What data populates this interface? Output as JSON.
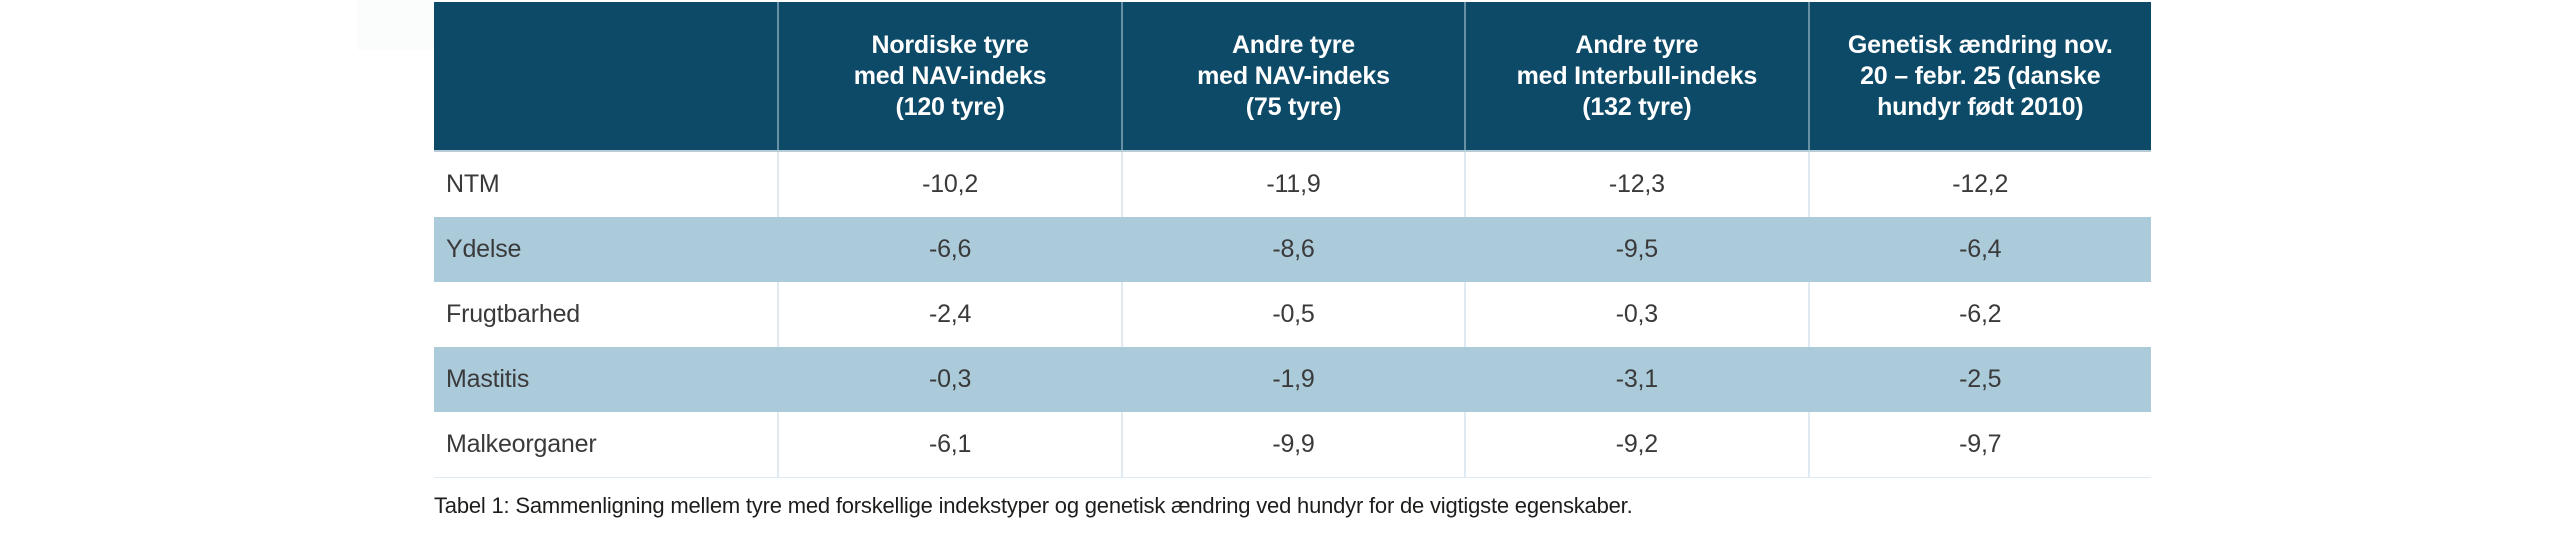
{
  "colors": {
    "header_bg": "#0d4a68",
    "header_text": "#ffffff",
    "stripe_bg": "#abcbdb",
    "row_bg": "#ffffff",
    "body_text": "#3a3a3a",
    "grid_line": "#dfeaf2",
    "header_underline": "#b8ccd8",
    "caption_text": "#1d1d1b"
  },
  "table": {
    "header": {
      "columns": [
        {
          "label": ""
        },
        {
          "label": "Nordiske tyre\nmed NAV-indeks\n(120 tyre)"
        },
        {
          "label": "Andre tyre\nmed NAV-indeks\n(75 tyre)"
        },
        {
          "label": "Andre tyre\nmed Interbull-indeks\n(132 tyre)"
        },
        {
          "label": "Genetisk ændring nov.\n20 – febr. 25 (danske\nhundyr født 2010)"
        }
      ]
    },
    "rows": [
      {
        "label": "NTM",
        "values": [
          "-10,2",
          "-11,9",
          "-12,3",
          "-12,2"
        ]
      },
      {
        "label": "Ydelse",
        "values": [
          "-6,6",
          "-8,6",
          "-9,5",
          "-6,4"
        ]
      },
      {
        "label": "Frugtbarhed",
        "values": [
          "-2,4",
          "-0,5",
          "-0,3",
          "-6,2"
        ]
      },
      {
        "label": "Mastitis",
        "values": [
          "-0,3",
          "-1,9",
          "-3,1",
          "-2,5"
        ]
      },
      {
        "label": "Malkeorganer",
        "values": [
          "-6,1",
          "-9,9",
          "-9,2",
          "-9,7"
        ]
      }
    ]
  },
  "caption": "Tabel 1: Sammenligning mellem tyre med forskellige indekstyper og genetisk ændring ved hundyr for de vigtigste egenskaber."
}
